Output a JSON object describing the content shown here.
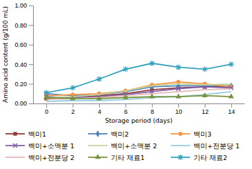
{
  "chart_data": {
    "type": "line",
    "x_label": "Storage period (days)",
    "y_label": "Amino acid content (g/100 mL)",
    "x": [
      0,
      2,
      4,
      6,
      8,
      10,
      12,
      14
    ],
    "xlim": [
      -1,
      15
    ],
    "xticks": [
      0,
      2,
      4,
      6,
      8,
      10,
      12,
      14
    ],
    "ylim": [
      0,
      1
    ],
    "yticks": [
      {
        "value": 0,
        "label": "0.00"
      },
      {
        "value": 0.2,
        "label": "0.20"
      },
      {
        "value": 0.4,
        "label": "0.40"
      },
      {
        "value": 0.6,
        "label": "0.60"
      },
      {
        "value": 0.8,
        "label": "0.80"
      },
      {
        "value": 1,
        "label": "1.00"
      }
    ],
    "grid": false,
    "legend": "bottom",
    "series": [
      {
        "name": "백미1",
        "color": "#953735",
        "marker": "square",
        "values": [
          0.05,
          0.06,
          0.08,
          0.1,
          0.14,
          0.16,
          0.17,
          0.17
        ]
      },
      {
        "name": "백미2",
        "color": "#4f81bd",
        "marker": "diamond",
        "values": [
          0.1,
          0.08,
          0.09,
          0.12,
          0.17,
          0.18,
          0.18,
          0.18
        ]
      },
      {
        "name": "백미3",
        "color": "#f79646",
        "marker": "circle",
        "values": [
          0.08,
          0.09,
          0.1,
          0.13,
          0.19,
          0.22,
          0.2,
          0.17
        ]
      },
      {
        "name": "백미+소맥분 1",
        "color": "#7f5fa8",
        "marker": "x",
        "values": [
          0.07,
          0.06,
          0.07,
          0.09,
          0.12,
          0.15,
          0.17,
          0.16
        ]
      },
      {
        "name": "백미+소맥분 2",
        "color": "#c3d69b",
        "marker": "none",
        "values": [
          0.06,
          0.07,
          0.09,
          0.13,
          0.18,
          0.2,
          0.19,
          0.2
        ]
      },
      {
        "name": "백미+전분당 1",
        "color": "#93cddd",
        "marker": "none",
        "values": [
          0.02,
          0.03,
          0.03,
          0.04,
          0.06,
          0.07,
          0.09,
          0.12
        ]
      },
      {
        "name": "백미+전분당 2",
        "color": "#e6b9b8",
        "marker": "none",
        "values": [
          0.04,
          0.05,
          0.06,
          0.08,
          0.1,
          0.12,
          0.14,
          0.15
        ]
      },
      {
        "name": "기타 재료1",
        "color": "#77933c",
        "marker": "triangle",
        "values": [
          0.06,
          0.05,
          0.05,
          0.06,
          0.07,
          0.07,
          0.08,
          0.07
        ]
      },
      {
        "name": "기타 재료2",
        "color": "#31a3bd",
        "marker": "asterisk",
        "values": [
          0.11,
          0.16,
          0.25,
          0.35,
          0.41,
          0.37,
          0.35,
          0.4
        ]
      }
    ]
  }
}
